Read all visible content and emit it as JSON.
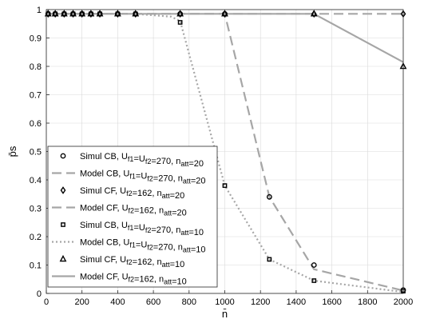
{
  "chart_data": {
    "type": "line",
    "xlabel": "n̄",
    "ylabel": "p̄s",
    "xlim": [
      0,
      2000
    ],
    "ylim": [
      0,
      1
    ],
    "xticks": [
      0,
      200,
      400,
      600,
      800,
      1000,
      1200,
      1400,
      1600,
      1800,
      2000
    ],
    "yticks": [
      0,
      0.1,
      0.2,
      0.3,
      0.4,
      0.5,
      0.6,
      0.7,
      0.8,
      0.9,
      1
    ],
    "grid": true,
    "legend_position": "bottom-left",
    "series": [
      {
        "name": "Simul CB, Uf1=Uf2=270, natt=20",
        "style": "markers",
        "marker": "circle",
        "color": "#000000",
        "x": [
          10,
          50,
          100,
          150,
          200,
          250,
          300,
          400,
          500,
          750,
          1000,
          1250,
          1500,
          2000
        ],
        "y": [
          0.985,
          0.985,
          0.985,
          0.985,
          0.985,
          0.985,
          0.985,
          0.985,
          0.985,
          0.985,
          0.985,
          0.34,
          0.1,
          0.012
        ]
      },
      {
        "name": "Model CB, Uf1=Uf2=270, natt=20",
        "style": "dashed",
        "color": "#a6a6a6",
        "x": [
          0,
          500,
          750,
          1000,
          1250,
          1500,
          2000
        ],
        "y": [
          0.985,
          0.985,
          0.985,
          0.985,
          0.34,
          0.085,
          0.01
        ]
      },
      {
        "name": "Simul CF, Uf2=162, natt=20",
        "style": "markers",
        "marker": "diamond",
        "color": "#000000",
        "x": [
          10,
          50,
          100,
          150,
          200,
          250,
          300,
          400,
          500,
          750,
          1000,
          1500,
          2000
        ],
        "y": [
          0.985,
          0.985,
          0.985,
          0.985,
          0.985,
          0.985,
          0.985,
          0.985,
          0.985,
          0.985,
          0.985,
          0.985,
          0.985
        ]
      },
      {
        "name": "Model CF, Uf2=162, natt=20",
        "style": "dashed",
        "color": "#a6a6a6",
        "x": [
          0,
          1000,
          1500,
          2000
        ],
        "y": [
          0.985,
          0.985,
          0.985,
          0.985
        ]
      },
      {
        "name": "Simul CB, Uf1=Uf2=270, natt=10",
        "style": "markers",
        "marker": "square",
        "color": "#000000",
        "x": [
          10,
          50,
          100,
          150,
          200,
          250,
          300,
          400,
          500,
          750,
          1000,
          1250,
          1500,
          2000
        ],
        "y": [
          0.985,
          0.985,
          0.985,
          0.985,
          0.985,
          0.985,
          0.985,
          0.985,
          0.985,
          0.955,
          0.38,
          0.12,
          0.045,
          0.008
        ]
      },
      {
        "name": "Model CB, Uf1=Uf2=270, natt=10",
        "style": "dotted",
        "color": "#a6a6a6",
        "x": [
          0,
          500,
          700,
          750,
          1000,
          1250,
          1500,
          2000
        ],
        "y": [
          0.985,
          0.985,
          0.975,
          0.96,
          0.38,
          0.12,
          0.045,
          0.005
        ]
      },
      {
        "name": "Simul CF, Uf2=162, natt=10",
        "style": "markers",
        "marker": "triangle",
        "color": "#000000",
        "x": [
          10,
          50,
          100,
          150,
          200,
          250,
          300,
          400,
          500,
          750,
          1000,
          1500,
          2000
        ],
        "y": [
          0.985,
          0.985,
          0.985,
          0.985,
          0.985,
          0.985,
          0.985,
          0.985,
          0.985,
          0.985,
          0.985,
          0.985,
          0.8
        ]
      },
      {
        "name": "Model CF, Uf2=162, natt=10",
        "style": "solid",
        "color": "#a6a6a6",
        "x": [
          0,
          1500,
          2000
        ],
        "y": [
          0.985,
          0.985,
          0.815
        ]
      }
    ]
  }
}
